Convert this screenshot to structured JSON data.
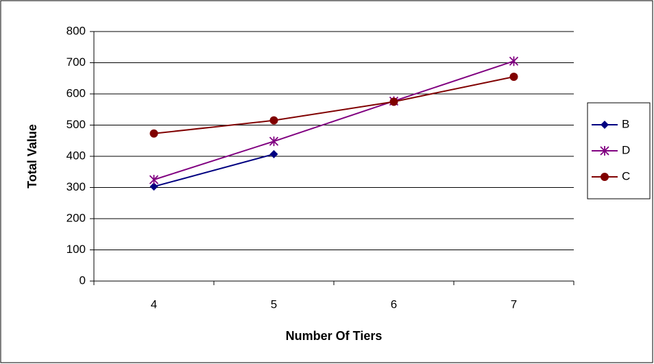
{
  "chart_data": {
    "type": "line",
    "x_label": "Number Of Tiers",
    "y_label": "Total Value",
    "categories": [
      "4",
      "5",
      "6",
      "7"
    ],
    "series": [
      {
        "name": "B",
        "color": "#000080",
        "marker": "diamond",
        "values": [
          303,
          407,
          null,
          null
        ]
      },
      {
        "name": "D",
        "color": "#800080",
        "marker": "star",
        "values": [
          325,
          448,
          577,
          705
        ]
      },
      {
        "name": "C",
        "color": "#800000",
        "marker": "circle",
        "values": [
          473,
          515,
          575,
          655
        ]
      }
    ],
    "ylim": [
      0,
      800
    ],
    "yticks": [
      0,
      100,
      200,
      300,
      400,
      500,
      600,
      700,
      800
    ],
    "grid": true,
    "legend_position": "right"
  }
}
